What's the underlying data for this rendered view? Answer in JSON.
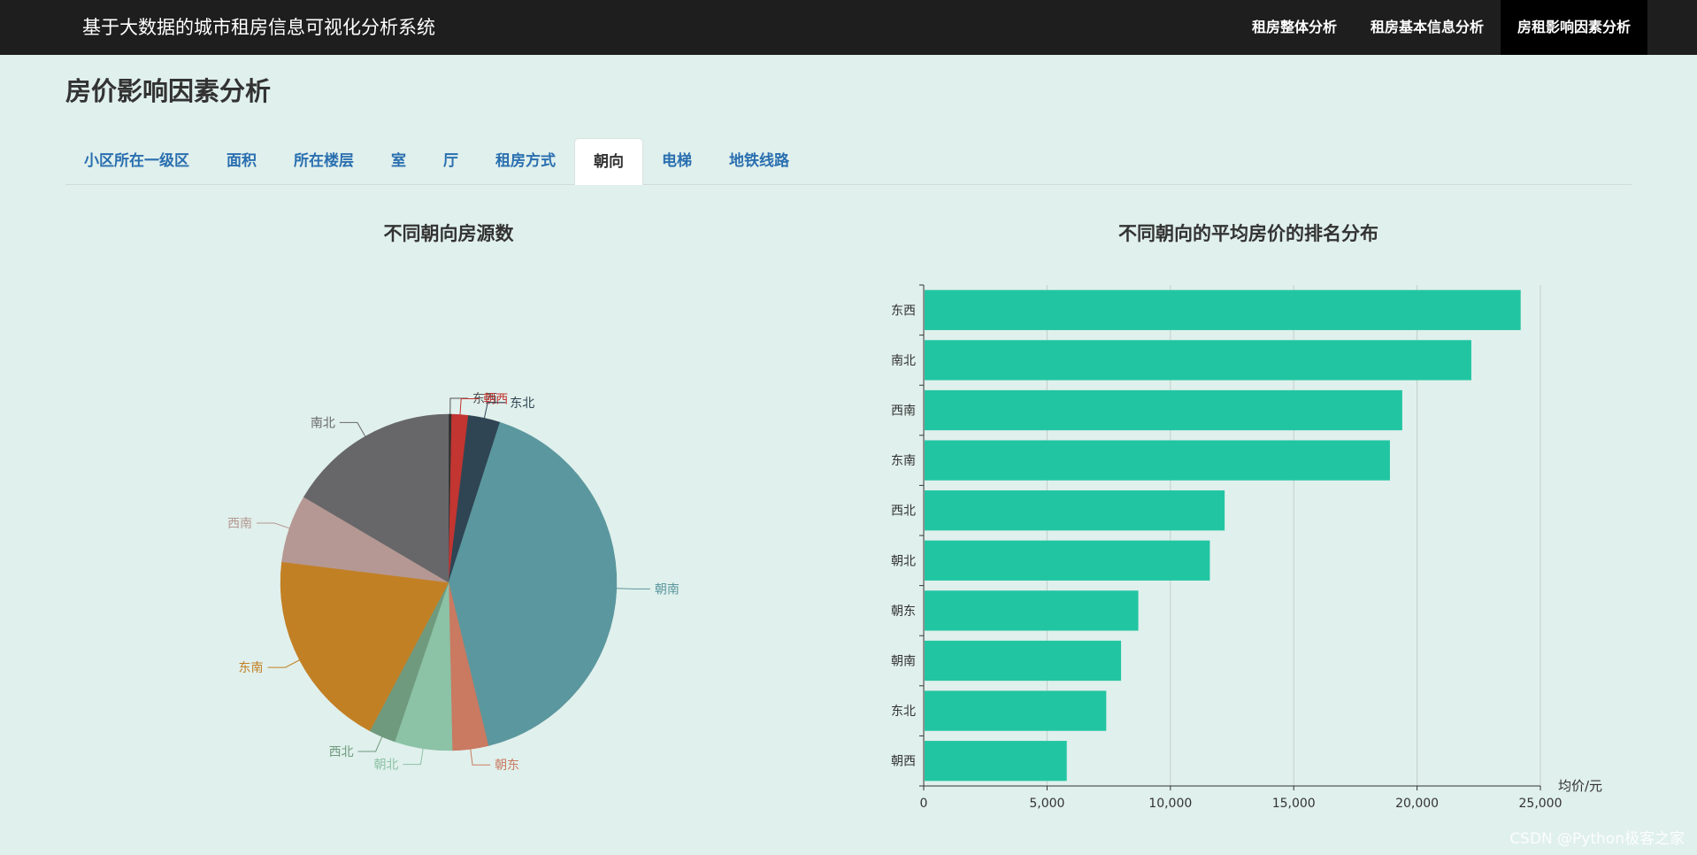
{
  "app": {
    "title": "基于大数据的城市租房信息可视化分析系统",
    "nav": [
      {
        "label": "租房整体分析",
        "active": false
      },
      {
        "label": "租房基本信息分析",
        "active": false
      },
      {
        "label": "房租影响因素分析",
        "active": true
      }
    ]
  },
  "page": {
    "title": "房价影响因素分析",
    "tabs": [
      {
        "label": "小区所在一级区",
        "active": false
      },
      {
        "label": "面积",
        "active": false
      },
      {
        "label": "所在楼层",
        "active": false
      },
      {
        "label": "室",
        "active": false
      },
      {
        "label": "厅",
        "active": false
      },
      {
        "label": "租房方式",
        "active": false
      },
      {
        "label": "朝向",
        "active": true
      },
      {
        "label": "电梯",
        "active": false
      },
      {
        "label": "地铁线路",
        "active": false
      }
    ]
  },
  "watermark": "CSDN @Python极客之家",
  "chart_data": [
    {
      "type": "pie",
      "title": "不同朝向房源数",
      "slices": [
        {
          "name": "东西",
          "value": 0.3,
          "color": "#2f2f2f"
        },
        {
          "name": "朝西",
          "value": 1.6,
          "color": "#c23531"
        },
        {
          "name": "东北",
          "value": 3.1,
          "color": "#2f4554"
        },
        {
          "name": "朝南",
          "value": 41.7,
          "color": "#5b979e"
        },
        {
          "name": "朝东",
          "value": 3.5,
          "color": "#c97a61"
        },
        {
          "name": "朝北",
          "value": 5.6,
          "color": "#8cc2a6"
        },
        {
          "name": "西北",
          "value": 2.6,
          "color": "#6f9a7e"
        },
        {
          "name": "东南",
          "value": 19.4,
          "color": "#c28025"
        },
        {
          "name": "西南",
          "value": 6.6,
          "color": "#b59893"
        },
        {
          "name": "南北",
          "value": 16.7,
          "color": "#67676a"
        }
      ]
    },
    {
      "type": "bar",
      "orientation": "horizontal",
      "title": "不同朝向的平均房价的排名分布",
      "categories": [
        "东西",
        "南北",
        "西南",
        "东南",
        "西北",
        "朝北",
        "朝东",
        "朝南",
        "东北",
        "朝西"
      ],
      "values": [
        24200,
        22200,
        19400,
        18900,
        12200,
        11600,
        8700,
        8000,
        7400,
        5800
      ],
      "xlabel": "均价/元",
      "xlim": [
        0,
        25000
      ],
      "xticks": [
        "0",
        "5,000",
        "10,000",
        "15,000",
        "20,000",
        "25,000"
      ],
      "color": "#22c5a2",
      "grid": true
    }
  ]
}
